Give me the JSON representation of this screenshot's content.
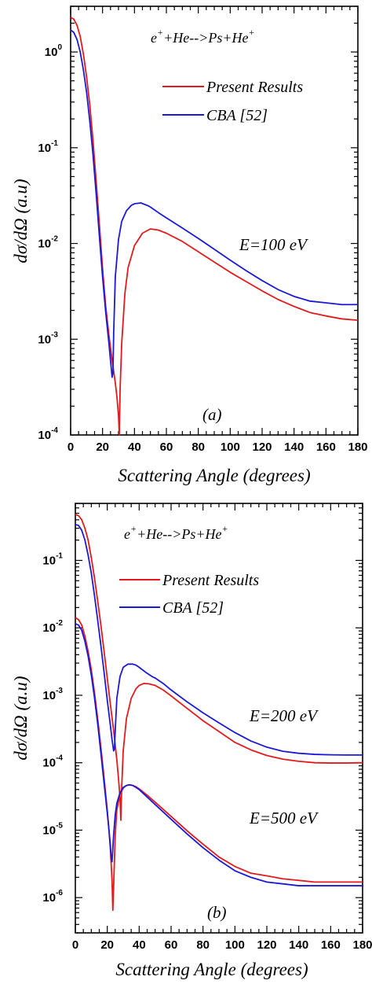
{
  "chart_data": [
    {
      "type": "line",
      "panel_label": "(a)",
      "reaction": "e<sup>+</sup>+He-->Ps+He<sup>+</sup>",
      "reaction_parts": [
        "e",
        "+",
        "+He-->Ps+He",
        "+"
      ],
      "annotation": "E=100 eV",
      "xlabel": "Scattering Angle (degrees)",
      "ylabel": "dσ/dΩ (a.u)",
      "xlim": [
        0,
        180
      ],
      "ylim": [
        0.0001,
        3
      ],
      "yscale": "log",
      "xticks": [
        0,
        20,
        40,
        60,
        80,
        100,
        120,
        140,
        160,
        180
      ],
      "xtick_labels": [
        "0",
        "20",
        "40",
        "60",
        "80",
        "100",
        "120",
        "140",
        "160",
        "180"
      ],
      "yticks": [
        {
          "mantissa": "10",
          "exp": "0"
        },
        {
          "mantissa": "10",
          "exp": "-1"
        },
        {
          "mantissa": "10",
          "exp": "-2"
        },
        {
          "mantissa": "10",
          "exp": "-3"
        },
        {
          "mantissa": "10",
          "exp": "-4"
        }
      ],
      "legend": [
        "Present Results",
        "CBA [52]"
      ],
      "series": [
        {
          "name": "Present Results",
          "color": "#e31a1c",
          "x": [
            0,
            2,
            4,
            6,
            8,
            10,
            12,
            14,
            16,
            18,
            20,
            22,
            24,
            26,
            28,
            29,
            30,
            30.5,
            31,
            32,
            34,
            36,
            40,
            45,
            50,
            55,
            60,
            70,
            80,
            90,
            100,
            110,
            120,
            130,
            140,
            150,
            160,
            170,
            180
          ],
          "y": [
            2.3,
            2.2,
            1.9,
            1.45,
            0.95,
            0.55,
            0.28,
            0.12,
            0.045,
            0.016,
            0.0055,
            0.0022,
            0.0011,
            0.0006,
            0.00035,
            0.00025,
            0.00016,
            0.0001,
            0.0003,
            0.0009,
            0.003,
            0.0056,
            0.0095,
            0.0128,
            0.0142,
            0.0138,
            0.0128,
            0.0105,
            0.0082,
            0.0064,
            0.005,
            0.004,
            0.0032,
            0.0026,
            0.0022,
            0.0019,
            0.00175,
            0.00163,
            0.00158
          ]
        },
        {
          "name": "CBA [52]",
          "color": "#1a1ad6",
          "x": [
            0,
            2,
            4,
            6,
            8,
            10,
            12,
            14,
            16,
            18,
            20,
            22,
            24,
            25,
            26,
            26.5,
            27,
            28,
            30,
            32,
            35,
            38,
            40,
            44,
            48,
            50,
            55,
            60,
            70,
            80,
            90,
            100,
            110,
            120,
            130,
            140,
            150,
            160,
            170,
            180
          ],
          "y": [
            1.7,
            1.6,
            1.35,
            1.0,
            0.65,
            0.38,
            0.19,
            0.085,
            0.033,
            0.012,
            0.0045,
            0.0019,
            0.0009,
            0.0006,
            0.0004,
            0.00045,
            0.0012,
            0.0045,
            0.011,
            0.017,
            0.022,
            0.025,
            0.026,
            0.0265,
            0.025,
            0.024,
            0.021,
            0.0185,
            0.0145,
            0.0113,
            0.0087,
            0.0067,
            0.0052,
            0.0041,
            0.0033,
            0.0028,
            0.0025,
            0.0024,
            0.0023,
            0.0023
          ]
        }
      ]
    },
    {
      "type": "line",
      "panel_label": "(b)",
      "reaction_parts": [
        "e",
        "+",
        "+He-->Ps+He",
        "+"
      ],
      "annotations": [
        "E=200 eV",
        "E=500 eV"
      ],
      "xlabel": "Scattering Angle (degrees)",
      "ylabel": "dσ/dΩ (a.u)",
      "xlim": [
        0,
        180
      ],
      "ylim": [
        3e-07,
        0.7
      ],
      "yscale": "log",
      "xticks": [
        0,
        20,
        40,
        60,
        80,
        100,
        120,
        140,
        160,
        180
      ],
      "xtick_labels": [
        "0",
        "20",
        "40",
        "60",
        "80",
        "100",
        "120",
        "140",
        "160",
        "180"
      ],
      "yticks": [
        {
          "mantissa": "10",
          "exp": "-1"
        },
        {
          "mantissa": "10",
          "exp": "-2"
        },
        {
          "mantissa": "10",
          "exp": "-3"
        },
        {
          "mantissa": "10",
          "exp": "-4"
        },
        {
          "mantissa": "10",
          "exp": "-5"
        },
        {
          "mantissa": "10",
          "exp": "-6"
        }
      ],
      "legend": [
        "Present Results",
        "CBA [52]"
      ],
      "series": [
        {
          "name": "Present Results",
          "energy": "E=200 eV",
          "color": "#e31a1c",
          "x": [
            0,
            2,
            4,
            6,
            8,
            10,
            12,
            14,
            16,
            18,
            20,
            22,
            24,
            26,
            27,
            28,
            28.5,
            29,
            30,
            32,
            35,
            38,
            40,
            43,
            46,
            50,
            55,
            60,
            70,
            80,
            90,
            100,
            110,
            120,
            130,
            140,
            150,
            160,
            170,
            180
          ],
          "y": [
            0.48,
            0.46,
            0.4,
            0.3,
            0.2,
            0.11,
            0.055,
            0.025,
            0.011,
            0.0045,
            0.0018,
            0.00072,
            0.0003,
            0.00011,
            6e-05,
            3e-05,
            1.4e-05,
            4e-05,
            0.00015,
            0.00045,
            0.0009,
            0.00125,
            0.0014,
            0.0015,
            0.00148,
            0.0014,
            0.0012,
            0.00098,
            0.00064,
            0.00042,
            0.00029,
            0.0002,
            0.000155,
            0.000128,
            0.000113,
            0.000105,
            0.0001,
            9.9e-05,
            9.9e-05,
            0.0001
          ]
        },
        {
          "name": "CBA [52]",
          "energy": "E=200 eV",
          "color": "#1a1ad6",
          "x": [
            0,
            2,
            4,
            6,
            8,
            10,
            12,
            14,
            16,
            18,
            20,
            22,
            23,
            24,
            24.5,
            25,
            26,
            28,
            30,
            33,
            36,
            38,
            40,
            44,
            48,
            50,
            55,
            60,
            70,
            80,
            90,
            100,
            110,
            120,
            130,
            140,
            150,
            160,
            170,
            180
          ],
          "y": [
            0.34,
            0.33,
            0.28,
            0.2,
            0.12,
            0.065,
            0.03,
            0.013,
            0.0055,
            0.0022,
            0.00085,
            0.00035,
            0.00022,
            0.00015,
            0.00016,
            0.0003,
            0.0009,
            0.0019,
            0.0026,
            0.0029,
            0.0029,
            0.0028,
            0.0026,
            0.0022,
            0.0019,
            0.0018,
            0.0015,
            0.0012,
            0.0008,
            0.00055,
            0.00039,
            0.00028,
            0.00021,
            0.00017,
            0.000148,
            0.000138,
            0.000133,
            0.000131,
            0.00013,
            0.00013
          ]
        },
        {
          "name": "Present Results",
          "energy": "E=500 eV",
          "color": "#e31a1c",
          "x": [
            0,
            2,
            4,
            6,
            8,
            10,
            12,
            14,
            16,
            18,
            20,
            21,
            22,
            23,
            23.5,
            24,
            25,
            26,
            28,
            30,
            32,
            34,
            36,
            38,
            40,
            45,
            50,
            60,
            70,
            80,
            90,
            100,
            110,
            120,
            130,
            140,
            150,
            160,
            170,
            180
          ],
          "y": [
            0.0142,
            0.0132,
            0.011,
            0.0075,
            0.0045,
            0.0024,
            0.0011,
            0.00045,
            0.00017,
            6e-05,
            2e-05,
            1.05e-05,
            5e-06,
            1.8e-06,
            6.5e-07,
            1.5e-06,
            8.5e-06,
            2e-05,
            3.4e-05,
            4.2e-05,
            4.6e-05,
            4.7e-05,
            4.6e-05,
            4.4e-05,
            4.1e-05,
            3.3e-05,
            2.6e-05,
            1.6e-05,
            9.8e-06,
            6.2e-06,
            4e-06,
            2.9e-06,
            2.3e-06,
            2.1e-06,
            1.9e-06,
            1.8e-06,
            1.7e-06,
            1.7e-06,
            1.7e-06,
            1.7e-06
          ]
        },
        {
          "name": "CBA [52]",
          "energy": "E=500 eV",
          "color": "#1a1ad6",
          "x": [
            0,
            2,
            4,
            6,
            8,
            10,
            12,
            14,
            16,
            18,
            20,
            21,
            22,
            22.5,
            23,
            24,
            25,
            26,
            28,
            30,
            32,
            34,
            36,
            38,
            40,
            45,
            50,
            60,
            70,
            80,
            90,
            100,
            110,
            120,
            130,
            140,
            150,
            160,
            170,
            180
          ],
          "y": [
            0.0115,
            0.011,
            0.0092,
            0.0063,
            0.0038,
            0.002,
            0.00092,
            0.00038,
            0.00014,
            5e-05,
            1.8e-05,
            1.05e-05,
            5.8e-06,
            3.8e-06,
            3.4e-06,
            8.5e-06,
            1.7e-05,
            2.5e-05,
            3.6e-05,
            4.3e-05,
            4.6e-05,
            4.7e-05,
            4.6e-05,
            4.3e-05,
            4e-05,
            3.1e-05,
            2.4e-05,
            1.45e-05,
            8.8e-06,
            5.5e-06,
            3.6e-06,
            2.5e-06,
            2e-06,
            1.7e-06,
            1.6e-06,
            1.5e-06,
            1.5e-06,
            1.5e-06,
            1.5e-06,
            1.5e-06
          ]
        }
      ]
    }
  ]
}
